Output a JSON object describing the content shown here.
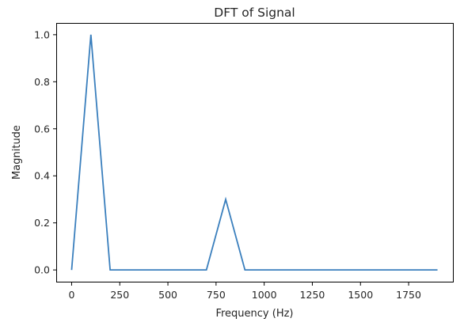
{
  "chart_data": {
    "type": "line",
    "title": "DFT of Signal",
    "xlabel": "Frequency (Hz)",
    "ylabel": "Magnitude",
    "xlim": [
      -80,
      1980
    ],
    "ylim": [
      -0.05,
      1.05
    ],
    "xticks": [
      0,
      250,
      500,
      750,
      1000,
      1250,
      1500,
      1750
    ],
    "xtick_labels": [
      "0",
      "250",
      "500",
      "750",
      "1000",
      "1250",
      "1500",
      "1750"
    ],
    "yticks": [
      0.0,
      0.2,
      0.4,
      0.6,
      0.8,
      1.0
    ],
    "ytick_labels": [
      "0.0",
      "0.2",
      "0.4",
      "0.6",
      "0.8",
      "1.0"
    ],
    "grid": false,
    "legend": false,
    "series": [
      {
        "color": "#3a7fbd",
        "x": [
          0,
          100,
          200,
          300,
          400,
          500,
          600,
          700,
          800,
          900,
          1000,
          1100,
          1200,
          1300,
          1400,
          1500,
          1600,
          1700,
          1800,
          1900
        ],
        "y": [
          0.0,
          1.0,
          0.0,
          0.0,
          0.0,
          0.0,
          0.0,
          0.0,
          0.3,
          0.0,
          0.0,
          0.0,
          0.0,
          0.0,
          0.0,
          0.0,
          0.0,
          0.0,
          0.0,
          0.0
        ]
      }
    ]
  }
}
